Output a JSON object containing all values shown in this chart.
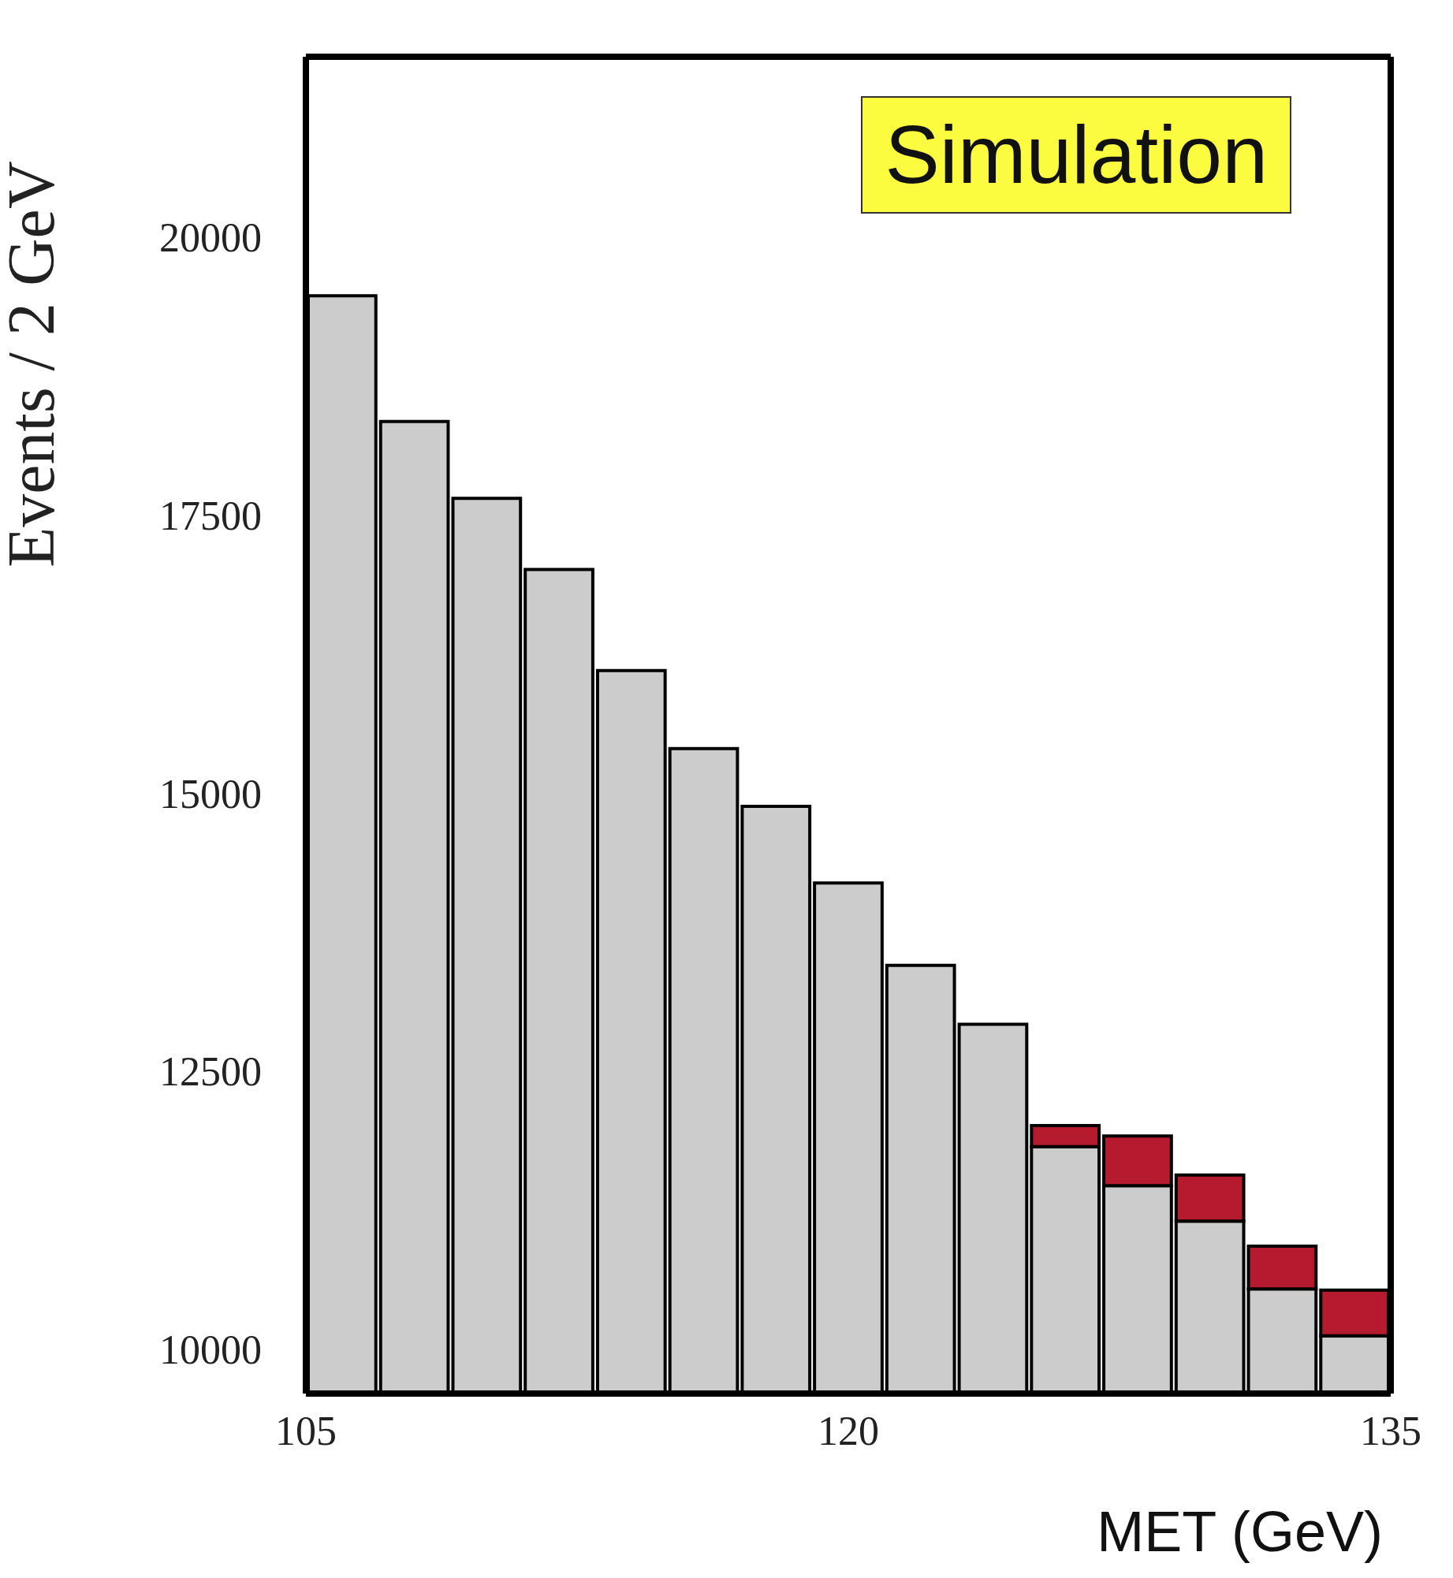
{
  "chart_data": {
    "type": "histogram",
    "xlabel": "MET (GeV)",
    "ylabel": "Events / 2 GeV",
    "annotations": [
      "Simulation"
    ],
    "bins": [
      105,
      107,
      109,
      111,
      113,
      115,
      117,
      119,
      121,
      123,
      125,
      127,
      129,
      131,
      133,
      135
    ],
    "series": [
      {
        "color": "#cccccc",
        "values": [
          19470,
          18340,
          17650,
          17010,
          16100,
          15400,
          14880,
          14190,
          13450,
          12920,
          11820,
          11470,
          11150,
          10540,
          10120
        ]
      },
      {
        "color": "#b51a2e",
        "base": [
          null,
          null,
          null,
          null,
          null,
          null,
          null,
          null,
          null,
          null,
          11820,
          11470,
          11150,
          10540,
          10120
        ],
        "values": [
          null,
          null,
          null,
          null,
          null,
          null,
          null,
          null,
          null,
          null,
          190,
          445,
          415,
          386,
          410
        ]
      }
    ],
    "xlim": [
      105,
      135
    ],
    "xticks": [
      105,
      120,
      135
    ],
    "ylim": [
      9600,
      21620
    ],
    "yticks": [
      10000,
      12500,
      15000,
      17500,
      20000
    ]
  }
}
